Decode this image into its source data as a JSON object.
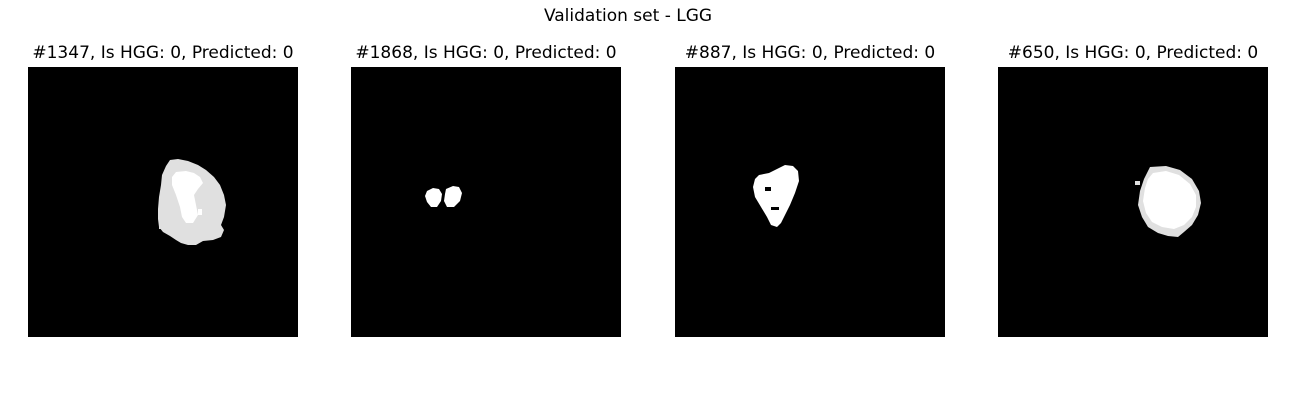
{
  "figure": {
    "title": "Validation set - LGG",
    "panels": [
      {
        "title": "#1347, Is HGG: 0, Predicted: 0",
        "image": "mri-tumor-segmentation-mask",
        "background": "#000000",
        "mask_colors": [
          "#ffffff",
          "#e0e0e0"
        ]
      },
      {
        "title": "#1868, Is HGG: 0, Predicted: 0",
        "image": "mri-tumor-segmentation-mask",
        "background": "#000000",
        "mask_colors": [
          "#ffffff",
          "#e0e0e0"
        ]
      },
      {
        "title": "#887, Is HGG: 0, Predicted: 0",
        "image": "mri-tumor-segmentation-mask",
        "background": "#000000",
        "mask_colors": [
          "#ffffff",
          "#e0e0e0"
        ]
      },
      {
        "title": "#650, Is HGG: 0, Predicted: 0",
        "image": "mri-tumor-segmentation-mask",
        "background": "#000000",
        "mask_colors": [
          "#ffffff",
          "#e0e0e0"
        ]
      }
    ]
  }
}
